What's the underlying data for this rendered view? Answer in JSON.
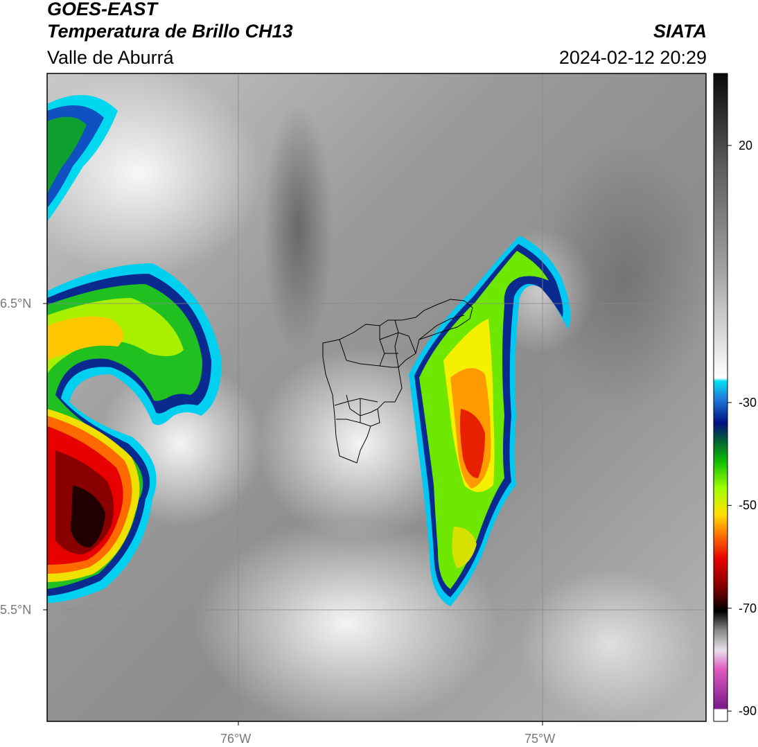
{
  "header": {
    "satellite": "GOES-EAST",
    "product": "Temperatura de Brillo CH13",
    "region": "Valle de Aburrá",
    "organization": "SIATA",
    "datetime": "2024-02-12 20:29"
  },
  "map": {
    "lat_labels": [
      {
        "text": "6.5°N",
        "value": 6.5
      },
      {
        "text": "5.5°N",
        "value": 5.5
      }
    ],
    "lon_labels": [
      {
        "text": "76°W",
        "value": -76
      },
      {
        "text": "75°W",
        "value": -75
      }
    ]
  },
  "colorbar": {
    "tick_labels": [
      "20",
      "-30",
      "-50",
      "-70",
      "-90"
    ],
    "range": [
      -92,
      34
    ],
    "tick_values": [
      20,
      -30,
      -50,
      -70,
      -90
    ]
  }
}
